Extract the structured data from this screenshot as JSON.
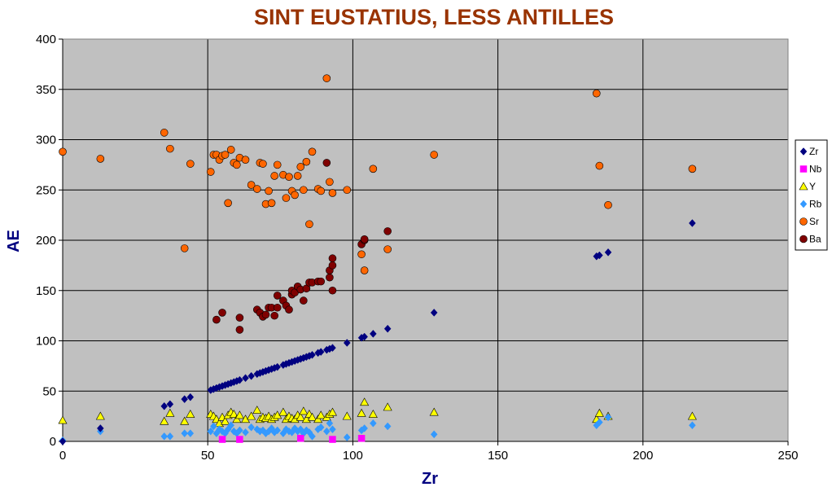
{
  "chart_data": {
    "type": "scatter",
    "title": "SINT EUSTATIUS, LESS ANTILLES",
    "xlabel": "Zr",
    "ylabel": "AE",
    "xlim": [
      0,
      250
    ],
    "ylim": [
      0,
      400
    ],
    "xticks": [
      "0",
      "50",
      "100",
      "150",
      "200",
      "250"
    ],
    "yticks": [
      "0",
      "50",
      "100",
      "150",
      "200",
      "250",
      "300",
      "350",
      "400"
    ],
    "grid": true,
    "legend_position": "right",
    "plot_background": "#c0c0c0",
    "series": [
      {
        "name": "Zr",
        "marker": "diamond",
        "color": "#000080",
        "points": [
          [
            0,
            0
          ],
          [
            13,
            13
          ],
          [
            35,
            35
          ],
          [
            37,
            37
          ],
          [
            42,
            42
          ],
          [
            44,
            44
          ],
          [
            51,
            51
          ],
          [
            52,
            52
          ],
          [
            53,
            53
          ],
          [
            54,
            54
          ],
          [
            55,
            55
          ],
          [
            56,
            56
          ],
          [
            57,
            57
          ],
          [
            58,
            58
          ],
          [
            59,
            59
          ],
          [
            60,
            60
          ],
          [
            61,
            61
          ],
          [
            63,
            63
          ],
          [
            65,
            65
          ],
          [
            67,
            67
          ],
          [
            68,
            68
          ],
          [
            69,
            69
          ],
          [
            70,
            70
          ],
          [
            71,
            71
          ],
          [
            72,
            72
          ],
          [
            73,
            73
          ],
          [
            74,
            74
          ],
          [
            76,
            76
          ],
          [
            77,
            77
          ],
          [
            78,
            78
          ],
          [
            79,
            79
          ],
          [
            80,
            80
          ],
          [
            81,
            81
          ],
          [
            82,
            82
          ],
          [
            83,
            83
          ],
          [
            84,
            84
          ],
          [
            85,
            85
          ],
          [
            86,
            86
          ],
          [
            88,
            88
          ],
          [
            89,
            89
          ],
          [
            91,
            91
          ],
          [
            92,
            92
          ],
          [
            93,
            93
          ],
          [
            98,
            98
          ],
          [
            103,
            103
          ],
          [
            104,
            104
          ],
          [
            107,
            107
          ],
          [
            112,
            112
          ],
          [
            128,
            128
          ],
          [
            184,
            184
          ],
          [
            185,
            185
          ],
          [
            188,
            188
          ],
          [
            217,
            217
          ]
        ]
      },
      {
        "name": "Nb",
        "marker": "square",
        "color": "#ff00ff",
        "points": [
          [
            55,
            2
          ],
          [
            61,
            2
          ],
          [
            82,
            3
          ],
          [
            93,
            2
          ],
          [
            103,
            3
          ]
        ]
      },
      {
        "name": "Y",
        "marker": "triangle",
        "color": "#ffff00",
        "points": [
          [
            0,
            21
          ],
          [
            13,
            25
          ],
          [
            35,
            20
          ],
          [
            37,
            28
          ],
          [
            42,
            20
          ],
          [
            44,
            27
          ],
          [
            51,
            27
          ],
          [
            52,
            25
          ],
          [
            53,
            22
          ],
          [
            54,
            18
          ],
          [
            55,
            24
          ],
          [
            56,
            20
          ],
          [
            57,
            26
          ],
          [
            58,
            29
          ],
          [
            59,
            27
          ],
          [
            60,
            22
          ],
          [
            61,
            26
          ],
          [
            63,
            22
          ],
          [
            65,
            25
          ],
          [
            67,
            31
          ],
          [
            68,
            22
          ],
          [
            69,
            24
          ],
          [
            70,
            23
          ],
          [
            71,
            25
          ],
          [
            72,
            22
          ],
          [
            73,
            24
          ],
          [
            74,
            26
          ],
          [
            76,
            29
          ],
          [
            77,
            22
          ],
          [
            78,
            25
          ],
          [
            79,
            23
          ],
          [
            80,
            22
          ],
          [
            81,
            26
          ],
          [
            82,
            24
          ],
          [
            83,
            30
          ],
          [
            84,
            22
          ],
          [
            85,
            27
          ],
          [
            86,
            24
          ],
          [
            88,
            22
          ],
          [
            89,
            26
          ],
          [
            91,
            24
          ],
          [
            92,
            27
          ],
          [
            93,
            29
          ],
          [
            98,
            25
          ],
          [
            103,
            28
          ],
          [
            104,
            39
          ],
          [
            107,
            27
          ],
          [
            112,
            34
          ],
          [
            128,
            29
          ],
          [
            184,
            22
          ],
          [
            185,
            28
          ],
          [
            188,
            25
          ],
          [
            217,
            25
          ]
        ]
      },
      {
        "name": "Rb",
        "marker": "diamond",
        "color": "#3399ff",
        "points": [
          [
            0,
            1
          ],
          [
            13,
            10
          ],
          [
            35,
            5
          ],
          [
            37,
            5
          ],
          [
            42,
            8
          ],
          [
            44,
            8
          ],
          [
            51,
            10
          ],
          [
            52,
            15
          ],
          [
            53,
            8
          ],
          [
            54,
            12
          ],
          [
            55,
            10
          ],
          [
            56,
            8
          ],
          [
            57,
            12
          ],
          [
            58,
            16
          ],
          [
            59,
            10
          ],
          [
            60,
            8
          ],
          [
            61,
            11
          ],
          [
            63,
            9
          ],
          [
            65,
            14
          ],
          [
            67,
            12
          ],
          [
            68,
            10
          ],
          [
            69,
            11
          ],
          [
            70,
            8
          ],
          [
            71,
            10
          ],
          [
            72,
            13
          ],
          [
            73,
            9
          ],
          [
            74,
            11
          ],
          [
            76,
            8
          ],
          [
            77,
            12
          ],
          [
            78,
            10
          ],
          [
            79,
            9
          ],
          [
            80,
            13
          ],
          [
            81,
            10
          ],
          [
            82,
            12
          ],
          [
            83,
            8
          ],
          [
            84,
            11
          ],
          [
            85,
            9
          ],
          [
            86,
            5
          ],
          [
            88,
            12
          ],
          [
            89,
            14
          ],
          [
            91,
            10
          ],
          [
            92,
            18
          ],
          [
            93,
            12
          ],
          [
            98,
            4
          ],
          [
            103,
            11
          ],
          [
            104,
            13
          ],
          [
            107,
            18
          ],
          [
            112,
            15
          ],
          [
            128,
            7
          ],
          [
            184,
            16
          ],
          [
            185,
            19
          ],
          [
            188,
            24
          ],
          [
            217,
            16
          ]
        ]
      },
      {
        "name": "Sr",
        "marker": "circle",
        "color": "#ff6600",
        "points": [
          [
            0,
            288
          ],
          [
            13,
            281
          ],
          [
            35,
            307
          ],
          [
            37,
            291
          ],
          [
            42,
            192
          ],
          [
            44,
            276
          ],
          [
            51,
            268
          ],
          [
            52,
            285
          ],
          [
            53,
            285
          ],
          [
            54,
            280
          ],
          [
            55,
            284
          ],
          [
            56,
            285
          ],
          [
            57,
            237
          ],
          [
            58,
            290
          ],
          [
            59,
            277
          ],
          [
            60,
            275
          ],
          [
            61,
            282
          ],
          [
            63,
            280
          ],
          [
            65,
            255
          ],
          [
            67,
            251
          ],
          [
            68,
            277
          ],
          [
            69,
            276
          ],
          [
            70,
            236
          ],
          [
            71,
            249
          ],
          [
            72,
            237
          ],
          [
            73,
            264
          ],
          [
            74,
            275
          ],
          [
            76,
            265
          ],
          [
            77,
            242
          ],
          [
            78,
            263
          ],
          [
            79,
            249
          ],
          [
            80,
            245
          ],
          [
            81,
            264
          ],
          [
            82,
            273
          ],
          [
            83,
            250
          ],
          [
            84,
            278
          ],
          [
            85,
            216
          ],
          [
            86,
            288
          ],
          [
            88,
            251
          ],
          [
            89,
            249
          ],
          [
            91,
            361
          ],
          [
            92,
            258
          ],
          [
            93,
            247
          ],
          [
            98,
            250
          ],
          [
            103,
            186
          ],
          [
            104,
            170
          ],
          [
            107,
            271
          ],
          [
            112,
            191
          ],
          [
            128,
            285
          ],
          [
            184,
            346
          ],
          [
            185,
            274
          ],
          [
            188,
            235
          ],
          [
            217,
            271
          ]
        ]
      },
      {
        "name": "Ba",
        "marker": "circle",
        "color": "#800000",
        "points": [
          [
            53,
            121
          ],
          [
            55,
            128
          ],
          [
            61,
            123
          ],
          [
            61,
            111
          ],
          [
            67,
            131
          ],
          [
            68,
            128
          ],
          [
            69,
            124
          ],
          [
            70,
            126
          ],
          [
            71,
            133
          ],
          [
            72,
            133
          ],
          [
            73,
            125
          ],
          [
            74,
            133
          ],
          [
            74,
            145
          ],
          [
            76,
            140
          ],
          [
            77,
            135
          ],
          [
            78,
            131
          ],
          [
            79,
            146
          ],
          [
            79,
            150
          ],
          [
            80,
            148
          ],
          [
            81,
            154
          ],
          [
            82,
            151
          ],
          [
            83,
            140
          ],
          [
            84,
            152
          ],
          [
            85,
            158
          ],
          [
            86,
            158
          ],
          [
            88,
            159
          ],
          [
            89,
            159
          ],
          [
            91,
            277
          ],
          [
            92,
            163
          ],
          [
            92,
            170
          ],
          [
            93,
            182
          ],
          [
            93,
            150
          ],
          [
            93,
            175
          ],
          [
            103,
            196
          ],
          [
            104,
            200
          ],
          [
            104,
            201
          ],
          [
            112,
            209
          ]
        ]
      }
    ]
  }
}
